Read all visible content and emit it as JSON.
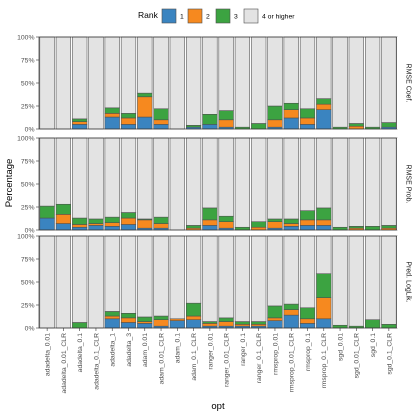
{
  "chart_data": {
    "type": "bar",
    "stacked": "percent",
    "xlabel": "opt",
    "ylabel": "Percentage",
    "ylim": [
      0,
      100
    ],
    "y_ticks": [
      "0%",
      "25%",
      "50%",
      "75%",
      "100%"
    ],
    "grid": false,
    "legend": {
      "title": "Rank",
      "placement": "top",
      "entries": [
        "1",
        "2",
        "3",
        "4 or higher"
      ]
    },
    "colors": {
      "1": "#3a84c0",
      "2": "#f6891f",
      "3": "#3ca341",
      "4 or higher": "#e3e3e3",
      "panel_background": "#ffffff",
      "strip_background": "#ffffff",
      "bar_outline": "#4d4d4d"
    },
    "categories": [
      "adadelta_0.01",
      "adadelta_0.01_CLR",
      "adadelta_0.1",
      "adadelta_0.1_CLR",
      "adadelta_1",
      "adadelta_3",
      "adam_0.01",
      "adam_0.01_CLR",
      "adam_0.1",
      "adam_0.1_CLR",
      "ranger_0.01",
      "ranger_0.01_CLR",
      "ranger_0.1",
      "ranger_0.1_CLR",
      "rmsprop_0.01",
      "rmsprop_0.01_CLR",
      "rmsprop_0.1",
      "rmsprop_0.1_CLR",
      "sgd_0.01",
      "sgd_0.01_CLR",
      "sgd_0.1",
      "sgd_0.1_CLR"
    ],
    "panels": [
      {
        "label": "RMSE Coef.",
        "series": [
          {
            "name": "1",
            "values": [
              0,
              0,
              5,
              0,
              13,
              5,
              13,
              5,
              0,
              2,
              5,
              2,
              0,
              0,
              2,
              12,
              5,
              21,
              0,
              0,
              0,
              2
            ]
          },
          {
            "name": "2",
            "values": [
              0,
              0,
              3,
              0,
              4,
              7,
              22,
              5,
              0,
              0,
              0,
              8,
              0,
              0,
              8,
              9,
              7,
              6,
              0,
              3,
              0,
              0
            ]
          },
          {
            "name": "3",
            "values": [
              0,
              0,
              3,
              0,
              6,
              5,
              4,
              12,
              0,
              2,
              11,
              10,
              2,
              6,
              15,
              7,
              10,
              6,
              2,
              3,
              2,
              5
            ]
          },
          {
            "name": "4 or higher",
            "values": [
              100,
              100,
              89,
              100,
              77,
              83,
              61,
              78,
              100,
              96,
              84,
              80,
              98,
              94,
              75,
              72,
              78,
              67,
              98,
              94,
              98,
              93
            ]
          }
        ]
      },
      {
        "label": "RMSE Prob.",
        "series": [
          {
            "name": "1",
            "values": [
              13,
              7,
              3,
              5,
              4,
              6,
              2,
              2,
              0,
              0,
              5,
              2,
              0,
              0,
              2,
              4,
              5,
              5,
              0,
              0,
              0,
              0
            ]
          },
          {
            "name": "2",
            "values": [
              0,
              10,
              3,
              2,
              4,
              7,
              9,
              5,
              0,
              2,
              6,
              7,
              0,
              3,
              7,
              3,
              6,
              6,
              0,
              2,
              0,
              2
            ]
          },
          {
            "name": "3",
            "values": [
              13,
              11,
              7,
              5,
              6,
              6,
              1,
              7,
              0,
              3,
              13,
              6,
              3,
              6,
              3,
              5,
              10,
              13,
              3,
              2,
              4,
              3
            ]
          },
          {
            "name": "4 or higher",
            "values": [
              74,
              72,
              87,
              88,
              86,
              81,
              88,
              86,
              100,
              95,
              76,
              85,
              97,
              91,
              88,
              88,
              79,
              76,
              97,
              96,
              96,
              95
            ]
          }
        ]
      },
      {
        "label": "Pred. LogLik.",
        "series": [
          {
            "name": "1",
            "values": [
              0,
              0,
              0,
              0,
              10,
              6,
              5,
              2,
              8,
              9,
              2,
              2,
              2,
              2,
              8,
              14,
              5,
              10,
              0,
              0,
              0,
              0
            ]
          },
          {
            "name": "2",
            "values": [
              0,
              0,
              0,
              0,
              3,
              5,
              2,
              7,
              2,
              4,
              3,
              5,
              2,
              2,
              3,
              6,
              5,
              23,
              0,
              0,
              0,
              0
            ]
          },
          {
            "name": "3",
            "values": [
              0,
              0,
              6,
              0,
              5,
              5,
              5,
              4,
              0,
              14,
              2,
              4,
              3,
              3,
              13,
              6,
              12,
              26,
              3,
              2,
              9,
              4
            ]
          },
          {
            "name": "4 or higher",
            "values": [
              100,
              100,
              94,
              100,
              82,
              84,
              88,
              87,
              90,
              73,
              93,
              89,
              93,
              93,
              76,
              74,
              78,
              41,
              97,
              98,
              91,
              96
            ]
          }
        ]
      }
    ]
  }
}
